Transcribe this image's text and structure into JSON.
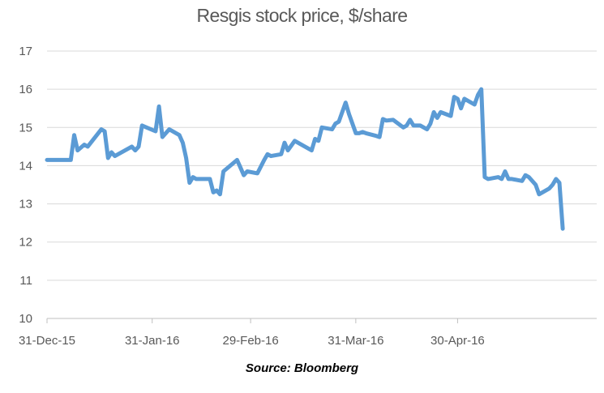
{
  "chart_data": {
    "type": "line",
    "title": "Resgis stock price, $/share",
    "xlabel": "",
    "ylabel": "",
    "ylim": [
      10,
      17
    ],
    "y_ticks": [
      10,
      11,
      12,
      13,
      14,
      15,
      16,
      17
    ],
    "x_ticks": [
      "31-Dec-15",
      "31-Jan-16",
      "29-Feb-16",
      "31-Mar-16",
      "30-Apr-16"
    ],
    "xlim": [
      "2015-12-31",
      "2016-06-10"
    ],
    "grid": "horizontal",
    "legend": "none",
    "series": [
      {
        "color": "#5b9bd5",
        "points": [
          [
            "2015-12-31",
            14.15
          ],
          [
            "2016-01-04",
            14.15
          ],
          [
            "2016-01-06",
            14.15
          ],
          [
            "2016-01-07",
            14.15
          ],
          [
            "2016-01-08",
            14.8
          ],
          [
            "2016-01-09",
            14.4
          ],
          [
            "2016-01-11",
            14.55
          ],
          [
            "2016-01-12",
            14.5
          ],
          [
            "2016-01-16",
            14.95
          ],
          [
            "2016-01-17",
            14.9
          ],
          [
            "2016-01-18",
            14.2
          ],
          [
            "2016-01-19",
            14.35
          ],
          [
            "2016-01-20",
            14.25
          ],
          [
            "2016-01-25",
            14.5
          ],
          [
            "2016-01-26",
            14.4
          ],
          [
            "2016-01-27",
            14.5
          ],
          [
            "2016-01-28",
            15.05
          ],
          [
            "2016-02-01",
            14.9
          ],
          [
            "2016-02-02",
            15.55
          ],
          [
            "2016-02-03",
            14.75
          ],
          [
            "2016-02-05",
            14.95
          ],
          [
            "2016-02-08",
            14.8
          ],
          [
            "2016-02-09",
            14.6
          ],
          [
            "2016-02-10",
            14.2
          ],
          [
            "2016-02-11",
            13.55
          ],
          [
            "2016-02-12",
            13.7
          ],
          [
            "2016-02-13",
            13.65
          ],
          [
            "2016-02-16",
            13.65
          ],
          [
            "2016-02-17",
            13.65
          ],
          [
            "2016-02-18",
            13.3
          ],
          [
            "2016-02-19",
            13.35
          ],
          [
            "2016-02-20",
            13.25
          ],
          [
            "2016-02-21",
            13.85
          ],
          [
            "2016-02-25",
            14.15
          ],
          [
            "2016-02-26",
            13.95
          ],
          [
            "2016-02-27",
            13.75
          ],
          [
            "2016-02-28",
            13.85
          ],
          [
            "2016-03-02",
            13.8
          ],
          [
            "2016-03-04",
            14.15
          ],
          [
            "2016-03-05",
            14.3
          ],
          [
            "2016-03-06",
            14.25
          ],
          [
            "2016-03-09",
            14.3
          ],
          [
            "2016-03-10",
            14.6
          ],
          [
            "2016-03-11",
            14.4
          ],
          [
            "2016-03-13",
            14.65
          ],
          [
            "2016-03-16",
            14.5
          ],
          [
            "2016-03-18",
            14.4
          ],
          [
            "2016-03-19",
            14.7
          ],
          [
            "2016-03-20",
            14.65
          ],
          [
            "2016-03-21",
            15.0
          ],
          [
            "2016-03-24",
            14.95
          ],
          [
            "2016-03-25",
            15.1
          ],
          [
            "2016-03-26",
            15.15
          ],
          [
            "2016-03-28",
            15.65
          ],
          [
            "2016-03-29",
            15.35
          ],
          [
            "2016-03-31",
            14.85
          ],
          [
            "2016-04-01",
            14.85
          ],
          [
            "2016-04-02",
            14.88
          ],
          [
            "2016-04-03",
            14.85
          ],
          [
            "2016-04-06",
            14.78
          ],
          [
            "2016-04-07",
            14.75
          ],
          [
            "2016-04-08",
            15.22
          ],
          [
            "2016-04-09",
            15.18
          ],
          [
            "2016-04-11",
            15.2
          ],
          [
            "2016-04-14",
            15.0
          ],
          [
            "2016-04-15",
            15.05
          ],
          [
            "2016-04-16",
            15.2
          ],
          [
            "2016-04-17",
            15.05
          ],
          [
            "2016-04-19",
            15.05
          ],
          [
            "2016-04-21",
            14.95
          ],
          [
            "2016-04-22",
            15.1
          ],
          [
            "2016-04-23",
            15.4
          ],
          [
            "2016-04-24",
            15.25
          ],
          [
            "2016-04-25",
            15.4
          ],
          [
            "2016-04-28",
            15.3
          ],
          [
            "2016-04-29",
            15.8
          ],
          [
            "2016-04-30",
            15.75
          ],
          [
            "2016-05-01",
            15.5
          ],
          [
            "2016-05-02",
            15.75
          ],
          [
            "2016-05-05",
            15.6
          ],
          [
            "2016-05-06",
            15.85
          ],
          [
            "2016-05-07",
            16.0
          ],
          [
            "2016-05-08",
            13.7
          ],
          [
            "2016-05-09",
            13.65
          ],
          [
            "2016-05-12",
            13.7
          ],
          [
            "2016-05-13",
            13.65
          ],
          [
            "2016-05-14",
            13.85
          ],
          [
            "2016-05-15",
            13.65
          ],
          [
            "2016-05-16",
            13.65
          ],
          [
            "2016-05-19",
            13.6
          ],
          [
            "2016-05-20",
            13.75
          ],
          [
            "2016-05-21",
            13.7
          ],
          [
            "2016-05-23",
            13.5
          ],
          [
            "2016-05-24",
            13.25
          ],
          [
            "2016-05-27",
            13.4
          ],
          [
            "2016-05-28",
            13.5
          ],
          [
            "2016-05-29",
            13.65
          ],
          [
            "2016-05-30",
            13.55
          ],
          [
            "2016-05-31",
            12.35
          ]
        ]
      }
    ],
    "annotation": "Source: Bloomberg"
  }
}
